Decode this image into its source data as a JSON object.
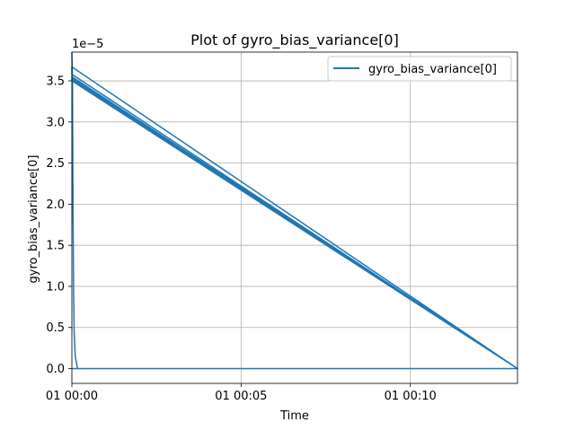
{
  "chart_data": {
    "type": "line",
    "title": "Plot of gyro_bias_variance[0]",
    "xlabel": "Time",
    "ylabel": "gyro_bias_variance[0]",
    "y_offset_label": "1e−5",
    "y_scale": 1e-05,
    "x_unit": "seconds since 01 00:00",
    "xlim": [
      0,
      790
    ],
    "ylim": [
      -0.18,
      3.85
    ],
    "x_ticks": [
      {
        "value": 0,
        "label": "01 00:00"
      },
      {
        "value": 300,
        "label": "01 00:05"
      },
      {
        "value": 600,
        "label": "01 00:10"
      }
    ],
    "y_ticks": [
      {
        "value": 0.0,
        "label": "0.0"
      },
      {
        "value": 0.5,
        "label": "0.5"
      },
      {
        "value": 1.0,
        "label": "1.0"
      },
      {
        "value": 1.5,
        "label": "1.5"
      },
      {
        "value": 2.0,
        "label": "2.0"
      },
      {
        "value": 2.5,
        "label": "2.5"
      },
      {
        "value": 3.0,
        "label": "3.0"
      },
      {
        "value": 3.5,
        "label": "3.5"
      }
    ],
    "grid": true,
    "legend_position": "top-right",
    "series": [
      {
        "name": "gyro_bias_variance[0]",
        "color": "#1f77b4",
        "x": [
          0,
          1,
          2,
          3,
          4,
          6,
          10,
          20,
          50,
          100,
          200,
          400,
          600,
          790,
          790,
          0,
          0,
          790,
          790,
          0,
          0,
          790,
          790,
          0,
          0,
          790,
          790,
          0
        ],
        "y": [
          3.85,
          3.5,
          2.0,
          1.0,
          0.45,
          0.15,
          0.0,
          0.0,
          0.0,
          0.0,
          0.0,
          0.0,
          0.0,
          0.0,
          0.0,
          3.67,
          3.58,
          0.0,
          0.0,
          3.55,
          3.54,
          0.0,
          0.0,
          3.52,
          3.5,
          0.0,
          0.0,
          0.0
        ]
      }
    ]
  }
}
